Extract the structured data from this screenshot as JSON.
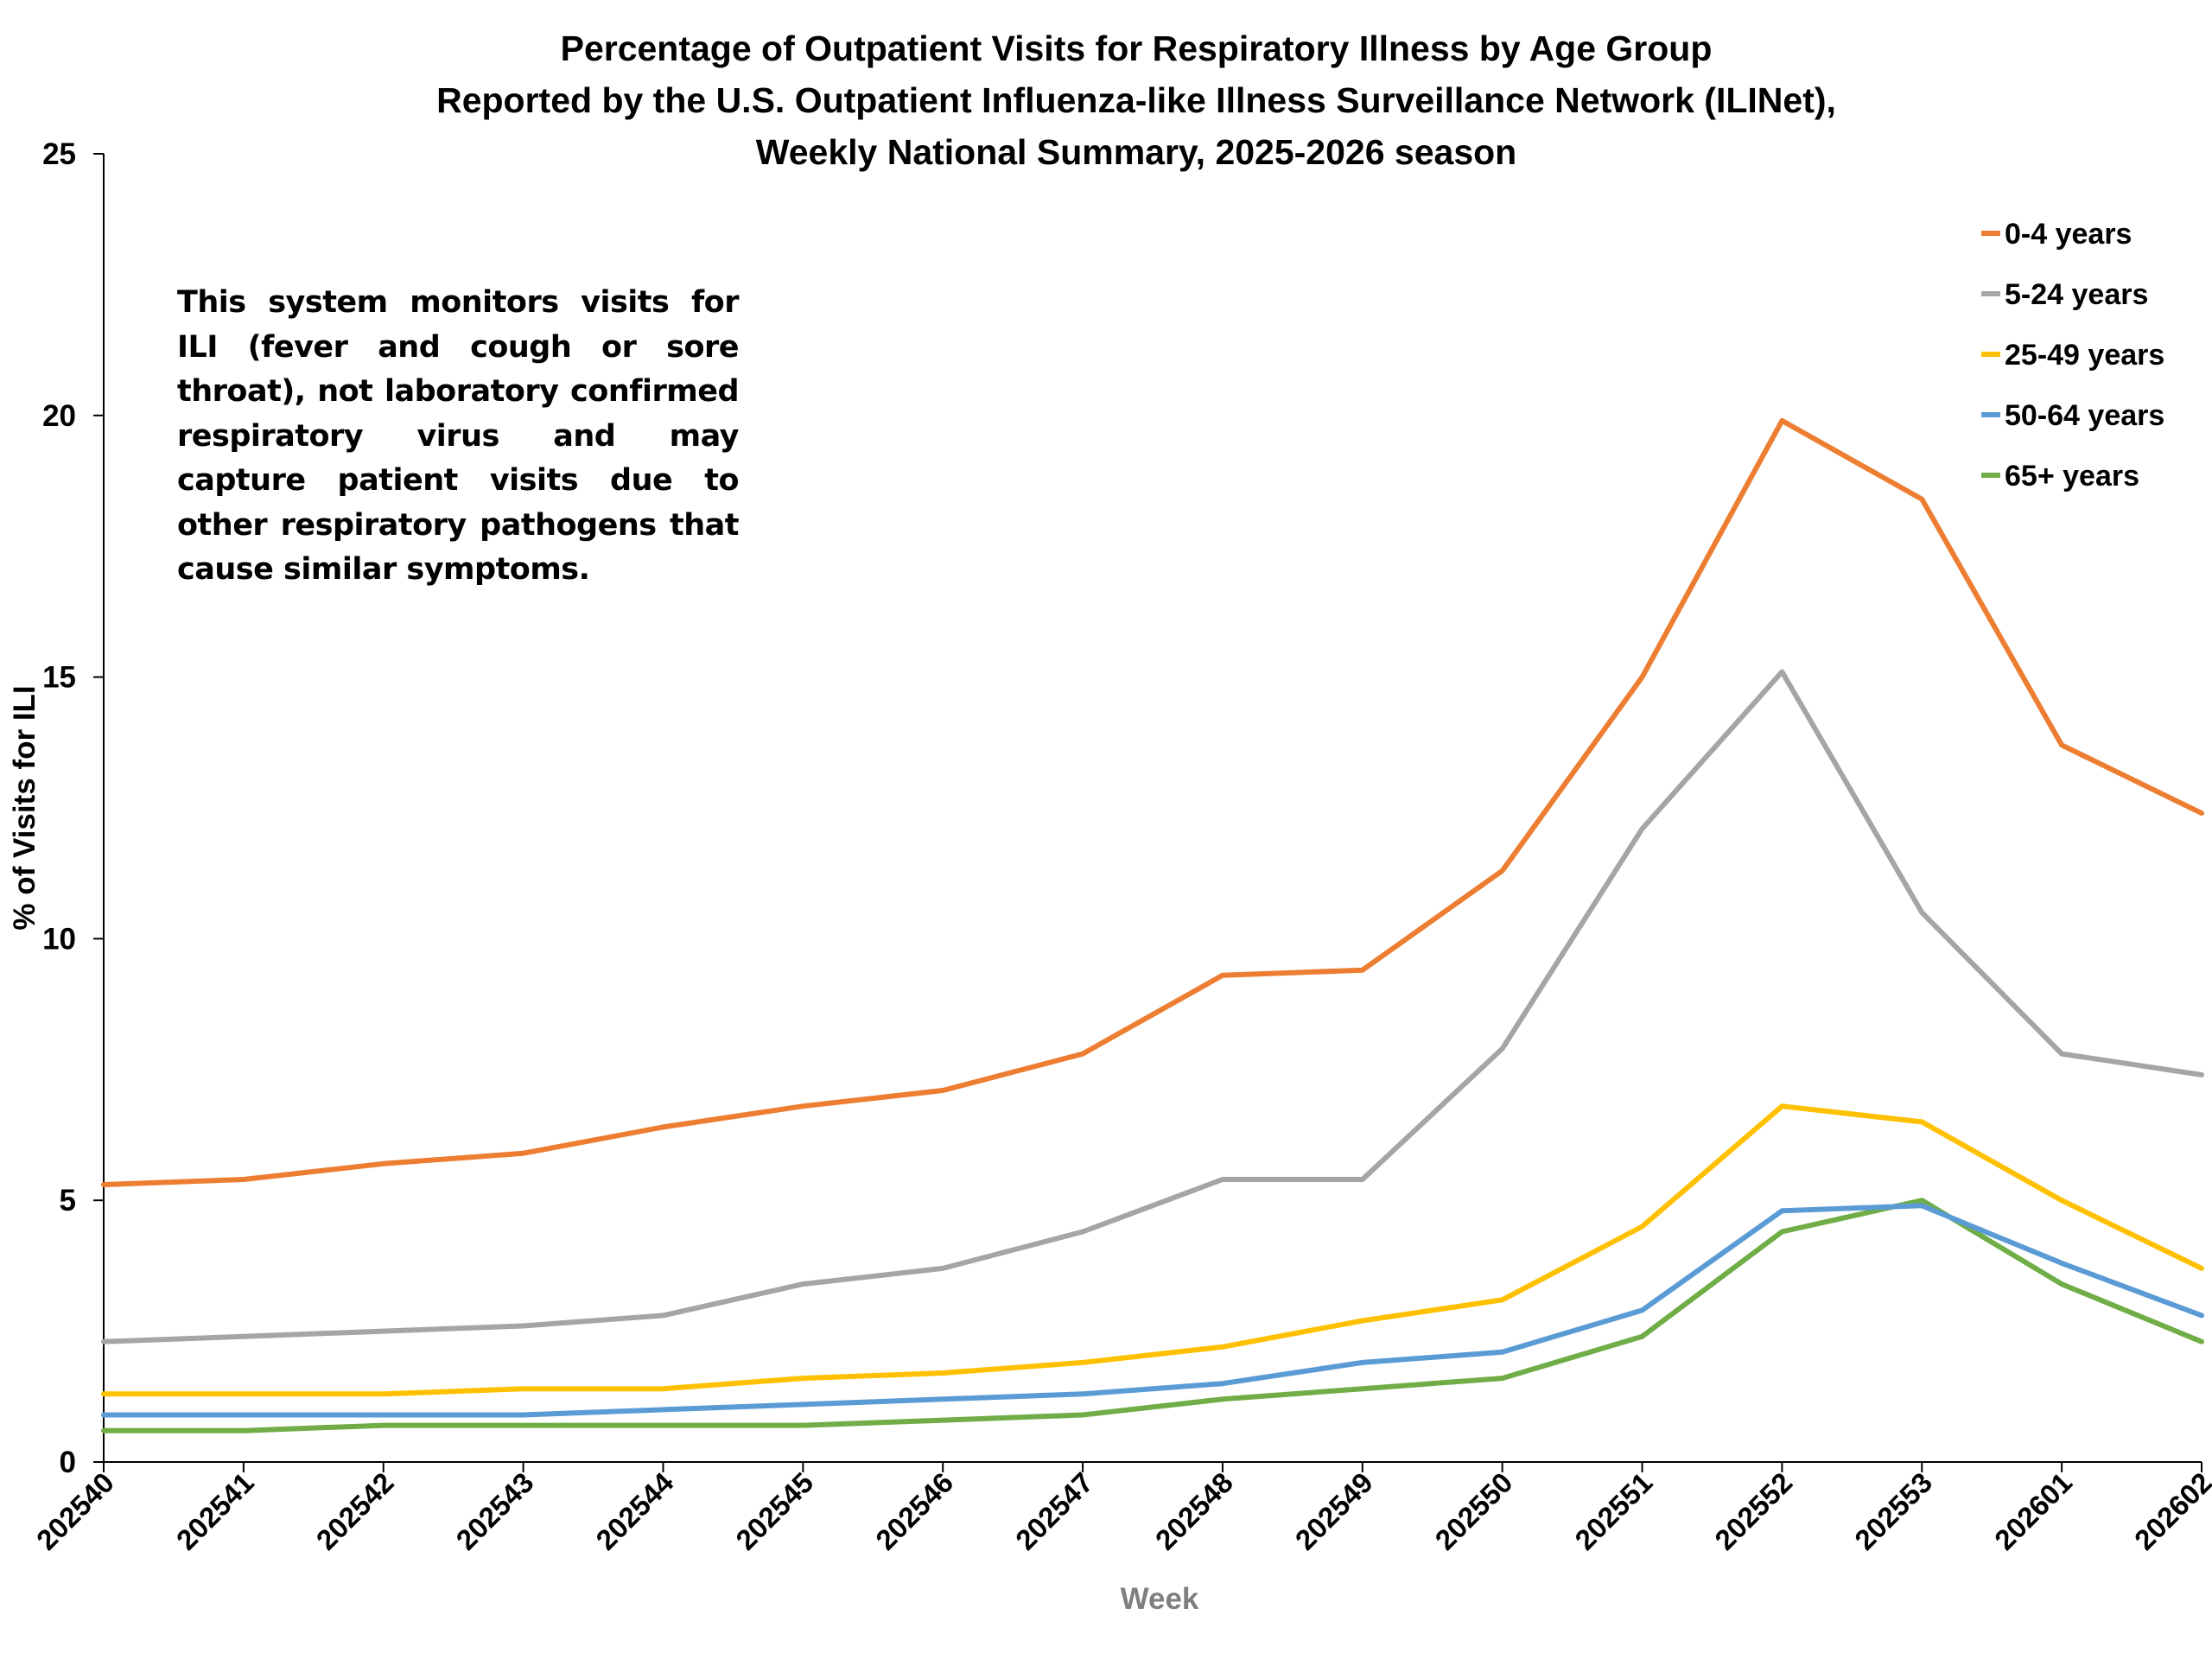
{
  "chart_data": {
    "type": "line",
    "title": [
      "Percentage of Outpatient Visits for Respiratory Illness by Age Group",
      "Reported by the U.S. Outpatient Influenza-like Illness Surveillance Network (ILINet),",
      "Weekly National Summary, 2025-2026 season"
    ],
    "xlabel": "Week",
    "ylabel": "% of Visits for ILI",
    "ylim": [
      0,
      25
    ],
    "yticks": [
      "0",
      "5",
      "10",
      "15",
      "20",
      "25"
    ],
    "categories": [
      "202540",
      "202541",
      "202542",
      "202543",
      "202544",
      "202545",
      "202546",
      "202547",
      "202548",
      "202549",
      "202550",
      "202551",
      "202552",
      "202553",
      "202601",
      "202602"
    ],
    "legend_position": "top-right",
    "grid": false,
    "series": [
      {
        "name": "0-4 years",
        "color": "#ED7D31",
        "values": [
          5.3,
          5.4,
          5.7,
          5.9,
          6.4,
          6.8,
          7.1,
          7.8,
          9.3,
          9.4,
          11.3,
          15.0,
          19.9,
          18.4,
          13.7,
          12.4
        ]
      },
      {
        "name": "5-24 years",
        "color": "#A5A5A5",
        "values": [
          2.3,
          2.4,
          2.5,
          2.6,
          2.8,
          3.4,
          3.7,
          4.4,
          5.4,
          5.4,
          7.9,
          12.1,
          15.1,
          10.5,
          7.8,
          7.4
        ]
      },
      {
        "name": "25-49 years",
        "color": "#FFC000",
        "values": [
          1.3,
          1.3,
          1.3,
          1.4,
          1.4,
          1.6,
          1.7,
          1.9,
          2.2,
          2.7,
          3.1,
          4.5,
          6.8,
          6.5,
          5.0,
          3.7
        ]
      },
      {
        "name": "50-64 years",
        "color": "#5B9BD5",
        "values": [
          0.9,
          0.9,
          0.9,
          0.9,
          1.0,
          1.1,
          1.2,
          1.3,
          1.5,
          1.9,
          2.1,
          2.9,
          4.8,
          4.9,
          3.8,
          2.8
        ]
      },
      {
        "name": "65+ years",
        "color": "#70AD47",
        "values": [
          0.6,
          0.6,
          0.7,
          0.7,
          0.7,
          0.7,
          0.8,
          0.9,
          1.2,
          1.4,
          1.6,
          2.4,
          4.4,
          5.0,
          3.4,
          2.3
        ]
      }
    ],
    "annotation": "This system monitors visits for ILI (fever and cough or sore throat), not laboratory confirmed respiratory virus and may capture patient visits due to other respiratory pathogens that cause similar symptoms."
  }
}
